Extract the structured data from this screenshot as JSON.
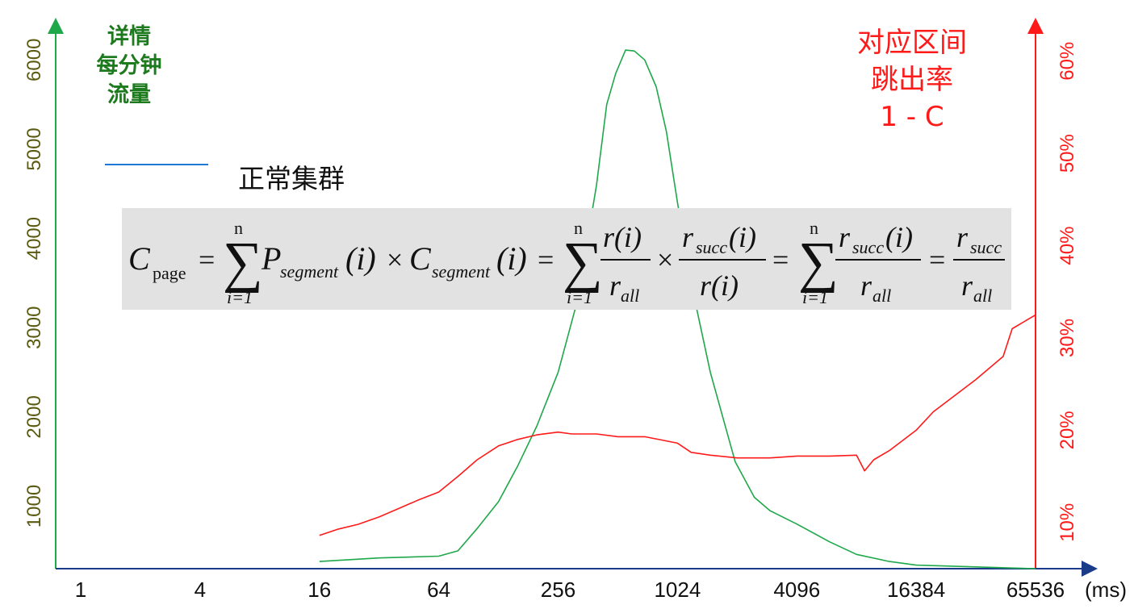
{
  "chart_data": {
    "type": "line",
    "x_axis": {
      "scale": "log2",
      "tick_labels": [
        "1",
        "4",
        "16",
        "64",
        "256",
        "1024",
        "4096",
        "16384",
        "65536"
      ],
      "unit_label": "(ms)"
    },
    "y_left": {
      "title_lines": [
        "详情",
        "每分钟",
        "流量"
      ],
      "tick_labels": [
        "1000",
        "2000",
        "3000",
        "4000",
        "5000",
        "6000"
      ],
      "range": [
        300,
        6400
      ],
      "color": "#1fa84a"
    },
    "y_right": {
      "title_lines": [
        "对应区间",
        "跳出率",
        "1 - C"
      ],
      "tick_labels": [
        "10%",
        "20%",
        "30%",
        "40%",
        "50%",
        "60%"
      ],
      "range": [
        5,
        64
      ],
      "color": "#ff1a1a"
    },
    "legend": {
      "label": "正常集群",
      "color": "#1f77d4"
    },
    "series": [
      {
        "axis": "left",
        "color": "#1fa84a",
        "x": [
          16,
          32,
          64,
          80,
          100,
          128,
          160,
          200,
          256,
          320,
          400,
          450,
          500,
          560,
          620,
          700,
          800,
          900,
          1024,
          1200,
          1500,
          2000,
          2500,
          3000,
          4096,
          6000,
          8192,
          12000,
          16384,
          32768,
          65536
        ],
        "values": [
          380,
          420,
          440,
          500,
          750,
          1050,
          1450,
          1900,
          2500,
          3300,
          4600,
          5500,
          5850,
          6110,
          6100,
          6000,
          5700,
          5200,
          4400,
          3500,
          2500,
          1500,
          1100,
          950,
          800,
          600,
          460,
          380,
          340,
          320,
          300
        ]
      },
      {
        "axis": "right",
        "color": "#ff1a1a",
        "x": [
          16,
          20,
          25,
          32,
          40,
          50,
          64,
          80,
          100,
          128,
          160,
          200,
          256,
          300,
          400,
          512,
          700,
          1024,
          1200,
          1500,
          2048,
          3000,
          4096,
          6000,
          8192,
          9000,
          10000,
          12000,
          16384,
          20000,
          32768,
          45000,
          50000,
          65536
        ],
        "values": [
          8.6,
          9.3,
          9.8,
          10.6,
          11.5,
          12.4,
          13.3,
          15.0,
          16.8,
          18.3,
          19.0,
          19.5,
          19.8,
          19.6,
          19.6,
          19.3,
          19.3,
          18.6,
          17.6,
          17.3,
          17.0,
          17.0,
          17.2,
          17.2,
          17.3,
          15.6,
          16.8,
          17.8,
          20.0,
          22.0,
          25.5,
          28.0,
          31.0,
          32.5
        ]
      }
    ]
  },
  "formula": {
    "lhs": "C",
    "lhs_sub": "page",
    "sum_upper": "n",
    "sum_lower": "i=1",
    "p_name": "P",
    "p_sub": "segment",
    "c_name": "C",
    "c_sub": "segment",
    "arg": "(i)",
    "r_num": "r(i)",
    "r_den": "r",
    "r_den_sub": "all",
    "rs": "r",
    "rs_sub": "succ",
    "times": "×",
    "eq": "="
  }
}
